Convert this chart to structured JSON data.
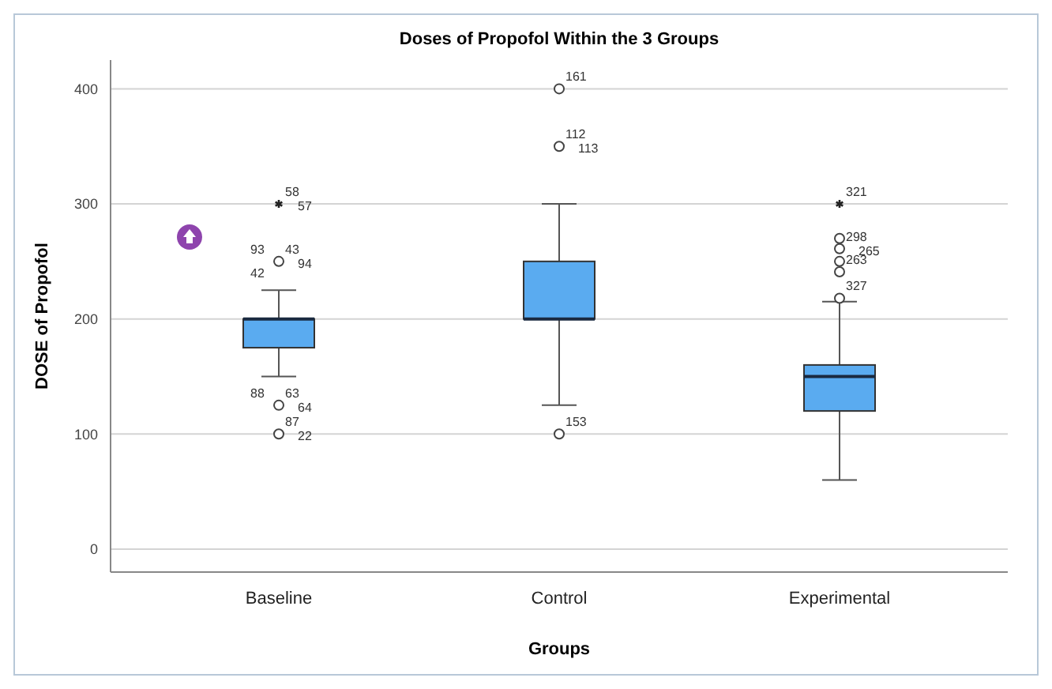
{
  "chart_data": {
    "type": "box",
    "title": "Doses of Propofol Within the 3 Groups",
    "xlabel": "Groups",
    "ylabel": "DOSE of Propofol",
    "categories": [
      "Baseline",
      "Control",
      "Experimental"
    ],
    "boxes": [
      {
        "low": 150,
        "q1": 175,
        "median": 200,
        "q3": 200,
        "high": 225
      },
      {
        "low": 125,
        "q1": 200,
        "median": 200,
        "q3": 250,
        "high": 300
      },
      {
        "low": 60,
        "q1": 120,
        "median": 150,
        "q3": 160,
        "high": 215
      }
    ],
    "series": [
      {
        "type": "scatter",
        "marker": "circle",
        "color": "#444444",
        "x": [
          "Baseline",
          "Baseline",
          "Baseline",
          "Control",
          "Control",
          "Control",
          "Experimental",
          "Experimental",
          "Experimental",
          "Experimental",
          "Experimental"
        ],
        "values": [
          250,
          125,
          100,
          400,
          350,
          100,
          270,
          261,
          250,
          241,
          218
        ]
      },
      {
        "type": "scatter",
        "marker": "cross",
        "color": "#222222",
        "x": [
          "Baseline",
          "Experimental"
        ],
        "values": [
          300,
          300
        ]
      }
    ],
    "color": "#5aabf0",
    "ylim": [
      -20,
      425
    ],
    "yticks": [
      0,
      100,
      200,
      300,
      400
    ],
    "grid": "y",
    "annotations": [
      {
        "text": "58",
        "x": "Baseline",
        "y": 300
      },
      {
        "text": "57",
        "x": "Baseline",
        "y": 300
      },
      {
        "text": "43",
        "x": "Baseline",
        "y": 250
      },
      {
        "text": "94",
        "x": "Baseline",
        "y": 250
      },
      {
        "text": "93",
        "x": "Baseline",
        "y": 250
      },
      {
        "text": "42",
        "x": "Baseline",
        "y": 250
      },
      {
        "text": "63",
        "x": "Baseline",
        "y": 125
      },
      {
        "text": "64",
        "x": "Baseline",
        "y": 125
      },
      {
        "text": "88",
        "x": "Baseline",
        "y": 125
      },
      {
        "text": "87",
        "x": "Baseline",
        "y": 100
      },
      {
        "text": "22",
        "x": "Baseline",
        "y": 100
      },
      {
        "text": "161",
        "x": "Control",
        "y": 400
      },
      {
        "text": "112",
        "x": "Control",
        "y": 350
      },
      {
        "text": "113",
        "x": "Control",
        "y": 350
      },
      {
        "text": "153",
        "x": "Control",
        "y": 100
      },
      {
        "text": "321",
        "x": "Experimental",
        "y": 300
      },
      {
        "text": "298",
        "x": "Experimental",
        "y": 261
      },
      {
        "text": "265",
        "x": "Experimental",
        "y": 261
      },
      {
        "text": "263",
        "x": "Experimental",
        "y": 241
      },
      {
        "text": "327",
        "x": "Experimental",
        "y": 218
      }
    ]
  }
}
